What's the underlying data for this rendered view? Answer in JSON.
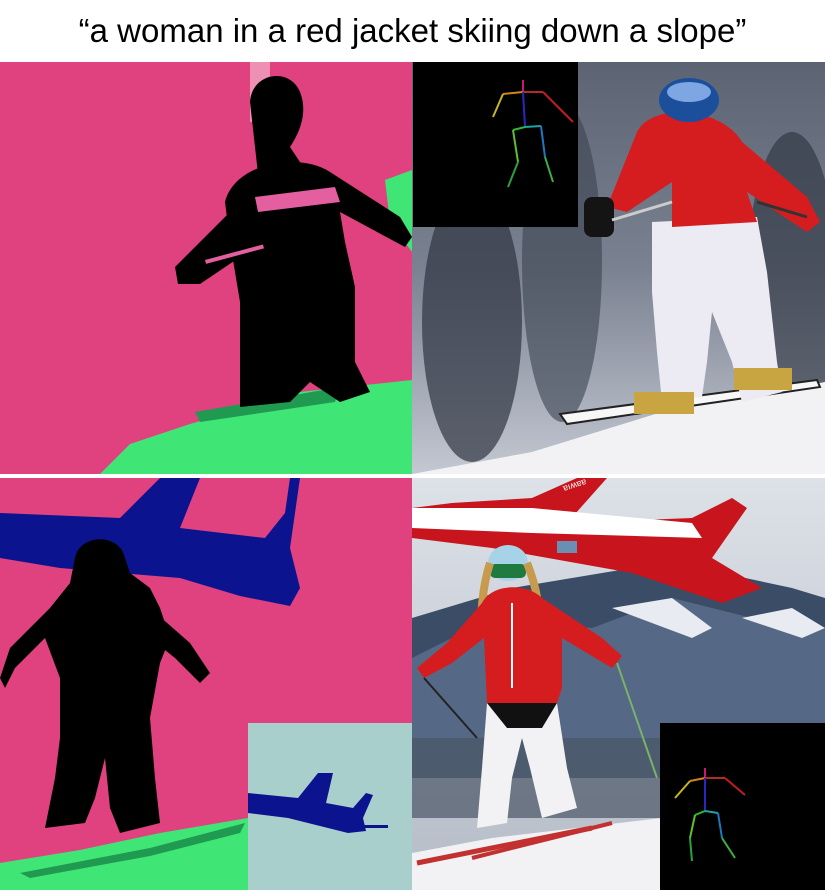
{
  "caption": "“a woman in a red jacket skiing down a slope”",
  "icons": {
    "tl": "segmentation-map-skier-icon",
    "tr": "snowboarder-photo-icon",
    "bl": "segmentation-map-skier-airplane-icon",
    "br": "skier-airplane-photo-icon",
    "pose": "pose-skeleton-icon",
    "plane": "airplane-segmentation-icon"
  },
  "plane_text": "ɐıʍɐɐ",
  "colors": {
    "seg_pink": "#e0427f",
    "seg_green": "#3fe676",
    "seg_black": "#000000",
    "seg_blue": "#0b138f",
    "seg_inset_bg": "#a9cfcc",
    "jacket_red": "#d51d20",
    "snow": "#f2f2f4",
    "sky": "#cfd3dc"
  }
}
